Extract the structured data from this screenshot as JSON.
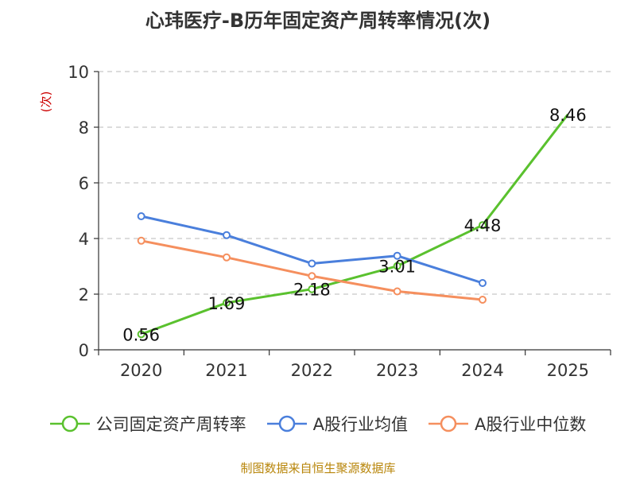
{
  "chart_data": {
    "type": "line",
    "title": "心玮医疗-B历年固定资产周转率情况(次)",
    "ylabel": "(次)",
    "xlabel": "",
    "ylim": [
      0,
      10
    ],
    "yticks": [
      0,
      2,
      4,
      6,
      8,
      10
    ],
    "grid": true,
    "legend_position": "bottom",
    "categories": [
      "2020",
      "2021",
      "2022",
      "2023",
      "2024",
      "2025"
    ],
    "series": [
      {
        "name": "公司固定资产周转率",
        "color": "#5ac12e",
        "values": [
          0.56,
          1.69,
          2.18,
          3.01,
          4.48,
          8.46
        ],
        "labels": [
          "0.56",
          "1.69",
          "2.18",
          "3.01",
          "4.48",
          "8.46"
        ]
      },
      {
        "name": "A股行业均值",
        "color": "#4a7fdc",
        "values": [
          4.8,
          4.12,
          3.1,
          3.38,
          2.4,
          null
        ]
      },
      {
        "name": "A股行业中位数",
        "color": "#f58f5e",
        "values": [
          3.92,
          3.32,
          2.65,
          2.1,
          1.8,
          null
        ]
      }
    ]
  },
  "source": "制图数据来自恒生聚源数据库"
}
